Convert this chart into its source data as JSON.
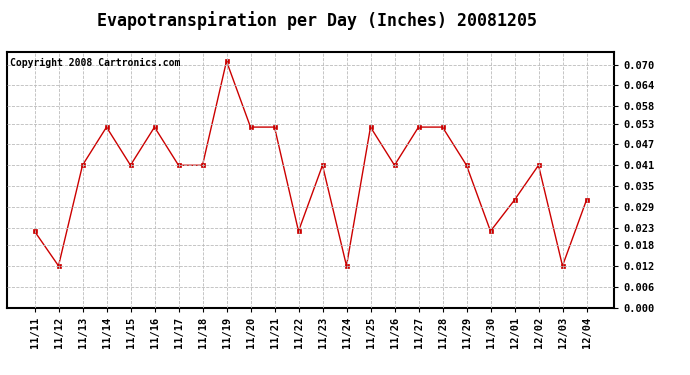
{
  "title": "Evapotranspiration per Day (Inches) 20081205",
  "copyright_text": "Copyright 2008 Cartronics.com",
  "x_labels": [
    "11/11",
    "11/12",
    "11/13",
    "11/14",
    "11/15",
    "11/16",
    "11/17",
    "11/18",
    "11/19",
    "11/20",
    "11/21",
    "11/22",
    "11/23",
    "11/24",
    "11/25",
    "11/26",
    "11/27",
    "11/28",
    "11/29",
    "11/30",
    "12/01",
    "12/02",
    "12/03",
    "12/04"
  ],
  "y_values": [
    0.022,
    0.012,
    0.041,
    0.052,
    0.041,
    0.052,
    0.041,
    0.041,
    0.071,
    0.052,
    0.052,
    0.022,
    0.041,
    0.012,
    0.052,
    0.041,
    0.052,
    0.052,
    0.041,
    0.022,
    0.031,
    0.041,
    0.012,
    0.031
  ],
  "line_color": "#cc0000",
  "marker": "s",
  "marker_size": 3,
  "ylim": [
    0.0,
    0.0735
  ],
  "yticks": [
    0.0,
    0.006,
    0.012,
    0.018,
    0.023,
    0.029,
    0.035,
    0.041,
    0.047,
    0.053,
    0.058,
    0.064,
    0.07
  ],
  "grid_color": "#bbbbbb",
  "bg_color": "#ffffff",
  "plot_bg_color": "#ffffff",
  "border_color": "#000000",
  "title_fontsize": 12,
  "tick_fontsize": 7.5,
  "copyright_fontsize": 7
}
